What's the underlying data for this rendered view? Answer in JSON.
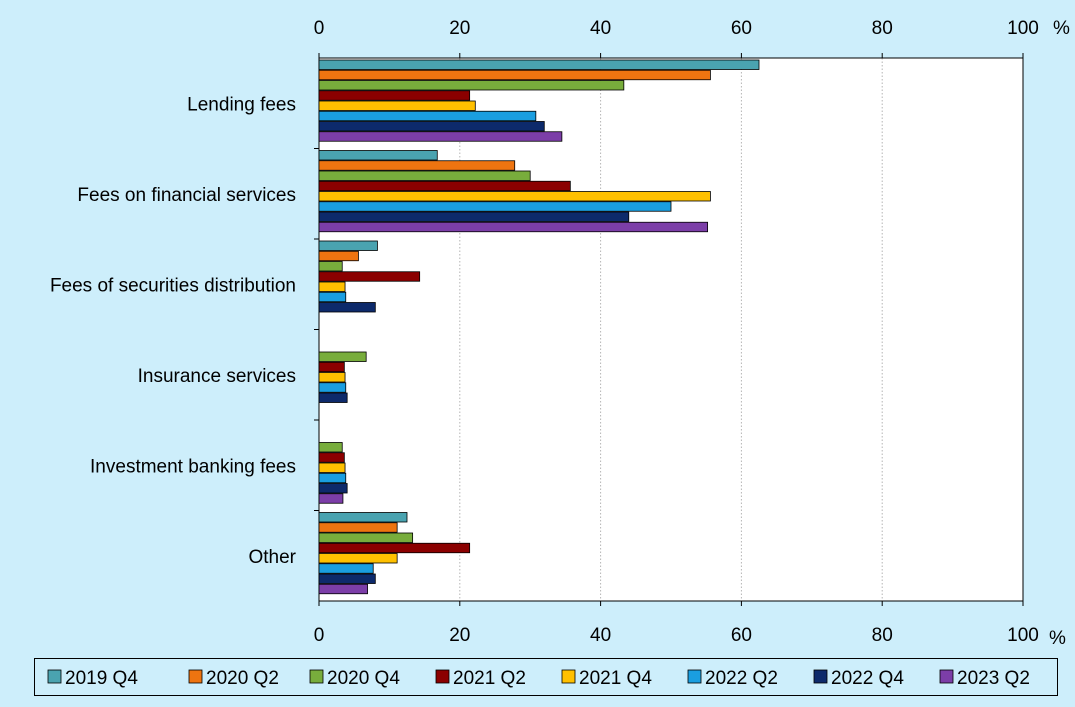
{
  "chart_data": {
    "type": "bar",
    "orientation": "horizontal",
    "title": "",
    "xlabel": "",
    "ylabel": "",
    "unit": "%",
    "xlim": [
      0,
      100
    ],
    "x_ticks": [
      0,
      20,
      40,
      60,
      80,
      100
    ],
    "grid": "vertical",
    "legend_position": "bottom",
    "categories": [
      "Lending fees",
      "Fees on financial services",
      "Fees of securities distribution",
      "Insurance services",
      "Investment banking fees",
      "Other"
    ],
    "series": [
      {
        "name": "2019 Q4",
        "color": "#4aa3b0",
        "values": [
          62.5,
          16.8,
          8.3,
          0,
          0,
          12.5
        ]
      },
      {
        "name": "2020 Q2",
        "color": "#ee7410",
        "values": [
          55.6,
          27.8,
          5.6,
          0,
          0,
          11.1
        ]
      },
      {
        "name": "2020 Q4",
        "color": "#78ad3c",
        "values": [
          43.3,
          30.0,
          3.3,
          6.7,
          3.3,
          13.3
        ]
      },
      {
        "name": "2021 Q2",
        "color": "#8b0000",
        "values": [
          21.4,
          35.7,
          14.3,
          3.6,
          3.6,
          21.4
        ]
      },
      {
        "name": "2021 Q4",
        "color": "#ffc000",
        "values": [
          22.2,
          55.6,
          3.7,
          3.7,
          3.7,
          11.1
        ]
      },
      {
        "name": "2022 Q2",
        "color": "#1a9ee0",
        "values": [
          30.8,
          50.0,
          3.8,
          3.8,
          3.8,
          7.7
        ]
      },
      {
        "name": "2022 Q4",
        "color": "#0d2a6b",
        "values": [
          32.0,
          44.0,
          8.0,
          4.0,
          4.0,
          8.0
        ]
      },
      {
        "name": "2023 Q2",
        "color": "#7c3ea8",
        "values": [
          34.5,
          55.2,
          0,
          0,
          3.4,
          6.9
        ]
      }
    ]
  }
}
